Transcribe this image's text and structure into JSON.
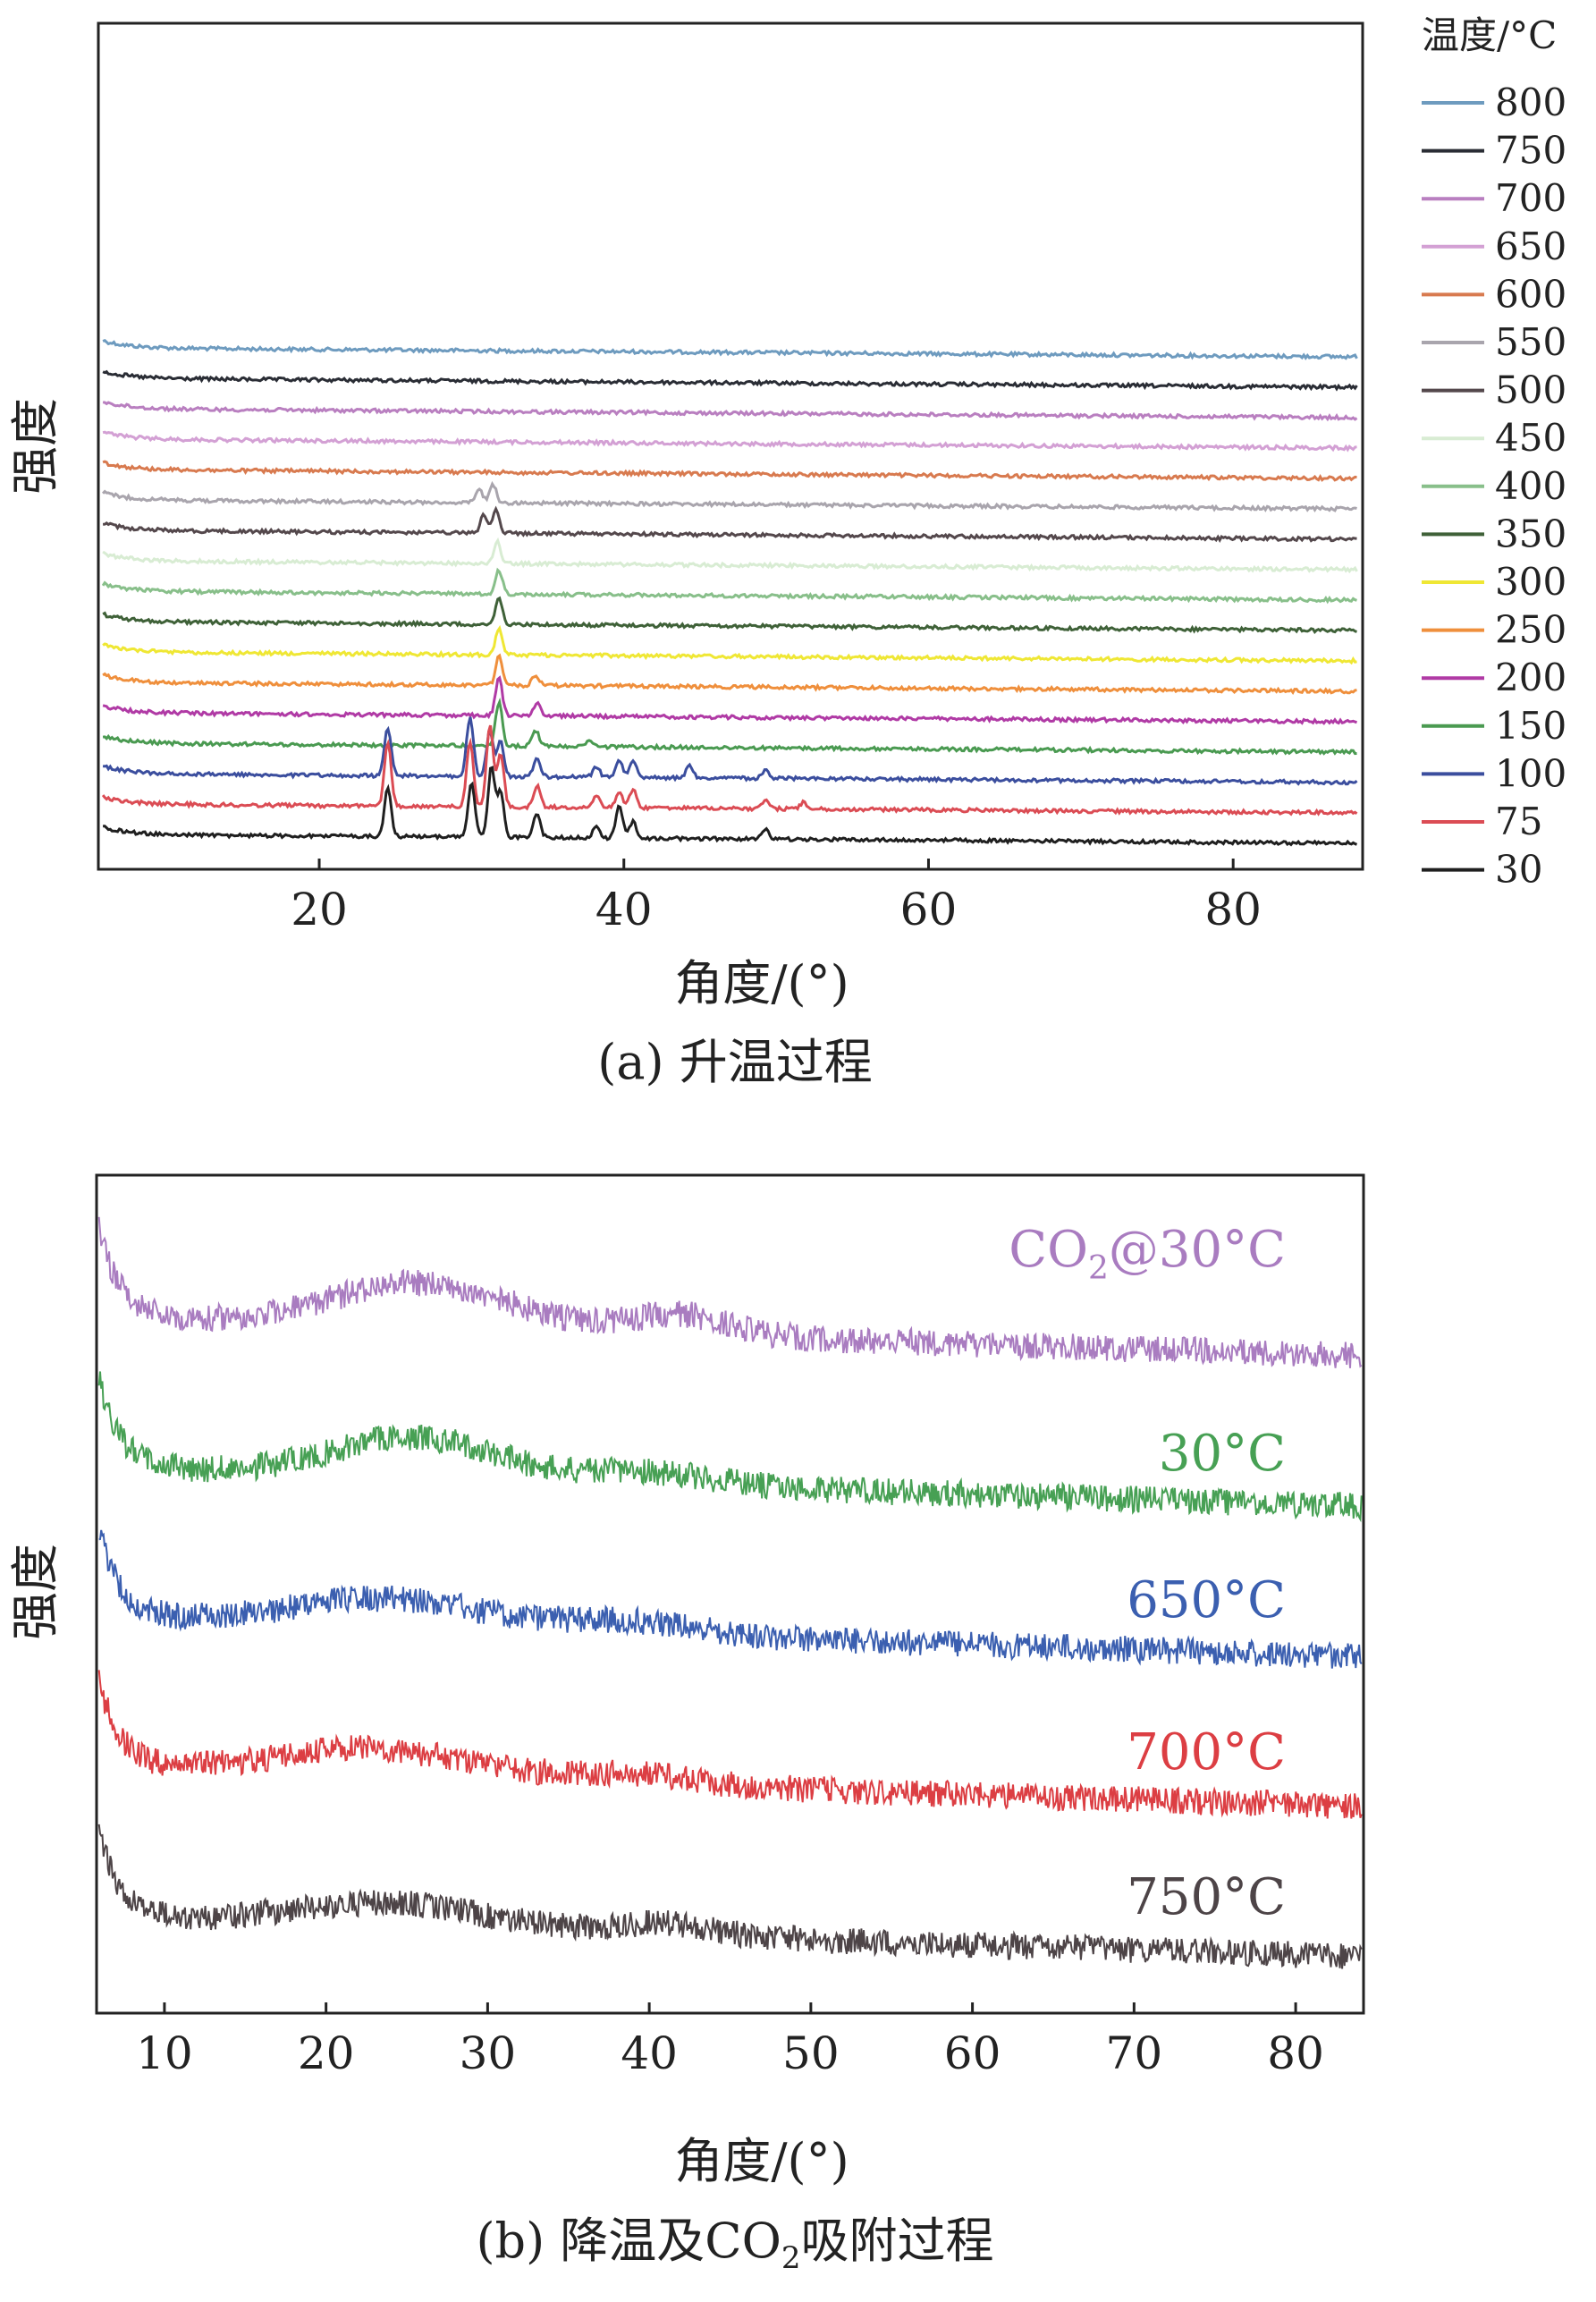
{
  "chart_data": [
    {
      "id": "a",
      "type": "line",
      "caption": "(a) 升温过程",
      "xlabel": "角度/(°)",
      "ylabel": "强度",
      "xlim": [
        5.5,
        88.5
      ],
      "xticks": [
        20,
        40,
        60,
        80
      ],
      "y_ticks_shown": false,
      "legend": {
        "title": "温度/°C",
        "position": "right"
      },
      "series": [
        {
          "name": "800",
          "color": "#6e9bbf",
          "offset": 16,
          "peaks": []
        },
        {
          "name": "750",
          "color": "#2a2d35",
          "offset": 15,
          "peaks": []
        },
        {
          "name": "700",
          "color": "#b97fc0",
          "offset": 14,
          "peaks": []
        },
        {
          "name": "650",
          "color": "#d3a0d4",
          "offset": 13,
          "peaks": []
        },
        {
          "name": "600",
          "color": "#d87a4f",
          "offset": 12,
          "peaks": []
        },
        {
          "name": "550",
          "color": "#a9a5ad",
          "offset": 11,
          "peaks": [
            [
              30.5,
              0.25
            ],
            [
              31.4,
              0.35
            ]
          ]
        },
        {
          "name": "500",
          "color": "#54484c",
          "offset": 10,
          "peaks": [
            [
              30.8,
              0.35
            ],
            [
              31.6,
              0.45
            ]
          ]
        },
        {
          "name": "450",
          "color": "#d8ecd3",
          "offset": 9,
          "peaks": [
            [
              31.7,
              0.4
            ]
          ]
        },
        {
          "name": "400",
          "color": "#88bf8a",
          "offset": 8,
          "peaks": [
            [
              31.8,
              0.45
            ]
          ]
        },
        {
          "name": "350",
          "color": "#3f6138",
          "offset": 7,
          "peaks": [
            [
              31.8,
              0.5
            ]
          ]
        },
        {
          "name": "300",
          "color": "#efe734",
          "offset": 6,
          "peaks": [
            [
              31.8,
              0.5
            ]
          ]
        },
        {
          "name": "250",
          "color": "#ef8f3c",
          "offset": 5,
          "peaks": [
            [
              31.8,
              0.55
            ],
            [
              34.2,
              0.2
            ]
          ]
        },
        {
          "name": "200",
          "color": "#b03aa5",
          "offset": 4,
          "peaks": [
            [
              31.8,
              0.7
            ],
            [
              34.3,
              0.25
            ]
          ]
        },
        {
          "name": "150",
          "color": "#4a9a51",
          "offset": 3,
          "peaks": [
            [
              31.8,
              0.8
            ],
            [
              34.2,
              0.3
            ],
            [
              37.8,
              0.12
            ]
          ]
        },
        {
          "name": "100",
          "color": "#3b4e9e",
          "offset": 2,
          "peaks": [
            [
              24.5,
              0.9
            ],
            [
              29.9,
              1.1
            ],
            [
              31.2,
              0.85
            ],
            [
              31.9,
              0.65
            ],
            [
              34.3,
              0.35
            ],
            [
              38.2,
              0.2
            ],
            [
              39.7,
              0.3
            ],
            [
              40.6,
              0.3
            ],
            [
              44.3,
              0.22
            ],
            [
              49.3,
              0.15
            ]
          ]
        },
        {
          "name": "75",
          "color": "#db4c54",
          "offset": 1,
          "peaks": [
            [
              24.5,
              1.2
            ],
            [
              29.9,
              1.2
            ],
            [
              31.2,
              1.5
            ],
            [
              31.9,
              1.0
            ],
            [
              34.3,
              0.4
            ],
            [
              38.2,
              0.2
            ],
            [
              39.7,
              0.3
            ],
            [
              40.6,
              0.35
            ],
            [
              49.3,
              0.15
            ],
            [
              51.8,
              0.12
            ]
          ]
        },
        {
          "name": "30",
          "color": "#1f1f1f",
          "offset": 0,
          "peaks": [
            [
              24.5,
              0.9
            ],
            [
              30.0,
              1.0
            ],
            [
              31.3,
              1.3
            ],
            [
              31.9,
              0.85
            ],
            [
              34.3,
              0.45
            ],
            [
              38.2,
              0.22
            ],
            [
              39.7,
              0.6
            ],
            [
              40.6,
              0.3
            ],
            [
              49.3,
              0.18
            ]
          ]
        }
      ]
    },
    {
      "id": "b",
      "type": "line",
      "caption_prefix": "(b) 降温及CO",
      "caption_sub": "2",
      "caption_suffix": "吸附过程",
      "xlabel": "角度/(°)",
      "ylabel": "强度",
      "xlim": [
        5.8,
        84.2
      ],
      "xticks": [
        10,
        20,
        30,
        40,
        50,
        60,
        70,
        80
      ],
      "y_ticks_shown": false,
      "series": [
        {
          "name": "CO2@30°C",
          "label_main": "CO",
          "label_sub": "2",
          "label_rest": "@30°C",
          "color": "#a97cc0",
          "offset": 4,
          "humps": [
            [
              26,
              0.55,
              5.5
            ],
            [
              42,
              0.25,
              3
            ]
          ]
        },
        {
          "name": "30°C",
          "label_main": "30°C",
          "label_sub": "",
          "label_rest": "",
          "color": "#47a054",
          "offset": 3,
          "humps": [
            [
              25.5,
              0.5,
              5
            ],
            [
              40,
              0.15,
              4
            ]
          ]
        },
        {
          "name": "650°C",
          "label_main": "650°C",
          "label_sub": "",
          "label_rest": "",
          "color": "#3b5fb0",
          "offset": 2,
          "humps": [
            [
              24,
              0.35,
              6
            ],
            [
              39,
              0.15,
              4
            ]
          ]
        },
        {
          "name": "700°C",
          "label_main": "700°C",
          "label_sub": "",
          "label_rest": "",
          "color": "#dc3e43",
          "offset": 1,
          "humps": [
            [
              23,
              0.35,
              6
            ],
            [
              39,
              0.12,
              4
            ]
          ]
        },
        {
          "name": "750°C",
          "label_main": "750°C",
          "label_sub": "",
          "label_rest": "",
          "color": "#4d4447",
          "offset": 0,
          "humps": [
            [
              24,
              0.3,
              6
            ],
            [
              41,
              0.15,
              3
            ]
          ]
        }
      ]
    }
  ]
}
